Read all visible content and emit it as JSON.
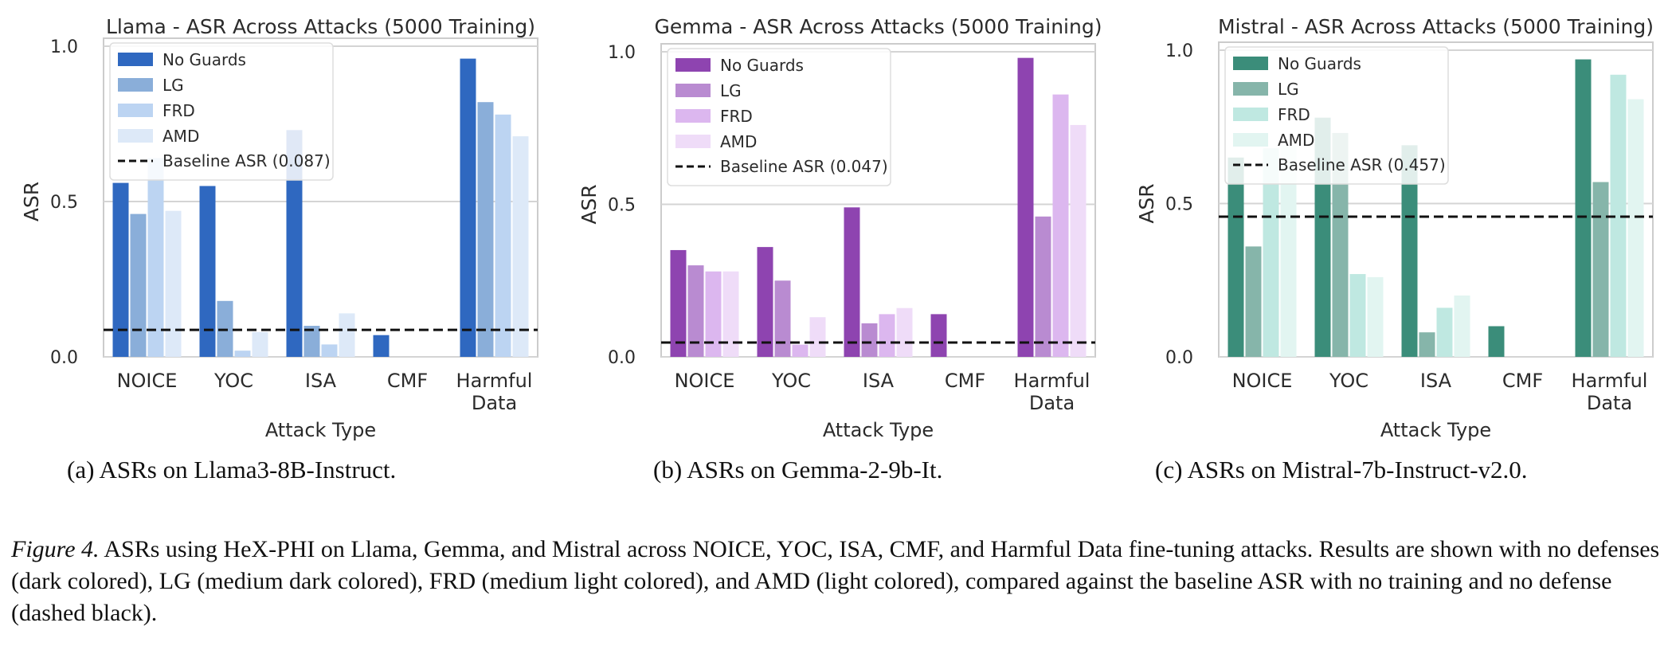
{
  "chart_data": [
    {
      "type": "bar",
      "title": "Llama - ASR Across Attacks (5000 Training)",
      "xlabel": "Attack Type",
      "ylabel": "ASR",
      "categories": [
        "NOICE",
        "YOC",
        "ISA",
        "CMF",
        "Harmful Data"
      ],
      "yticks": [
        "0.0",
        "0.5",
        "1.0"
      ],
      "ylim": [
        0,
        1.0
      ],
      "grid": "horizontal",
      "legend_position": "top-left",
      "colors": [
        "#2f68c0",
        "#8aaed9",
        "#bcd4f2",
        "#dde9f8"
      ],
      "series": [
        {
          "name": "No Guards",
          "values": [
            0.56,
            0.55,
            0.73,
            0.07,
            0.96
          ]
        },
        {
          "name": "LG",
          "values": [
            0.46,
            0.18,
            0.1,
            0.0,
            0.82
          ]
        },
        {
          "name": "FRD",
          "values": [
            0.64,
            0.02,
            0.04,
            0.0,
            0.78
          ]
        },
        {
          "name": "AMD",
          "values": [
            0.47,
            0.08,
            0.14,
            0.0,
            0.71
          ]
        }
      ],
      "baseline": {
        "label": "Baseline ASR (0.087)",
        "value": 0.087
      }
    },
    {
      "type": "bar",
      "title": "Gemma - ASR Across Attacks (5000 Training)",
      "xlabel": "Attack Type",
      "ylabel": "ASR",
      "categories": [
        "NOICE",
        "YOC",
        "ISA",
        "CMF",
        "Harmful Data"
      ],
      "yticks": [
        "0.0",
        "0.5",
        "1.0"
      ],
      "ylim": [
        0,
        1.0
      ],
      "grid": "horizontal",
      "legend_position": "top-left",
      "colors": [
        "#8e44b0",
        "#b98bd1",
        "#dcb7ef",
        "#efdcf8"
      ],
      "series": [
        {
          "name": "No Guards",
          "values": [
            0.35,
            0.36,
            0.49,
            0.14,
            0.98
          ]
        },
        {
          "name": "LG",
          "values": [
            0.3,
            0.25,
            0.11,
            0.0,
            0.46
          ]
        },
        {
          "name": "FRD",
          "values": [
            0.28,
            0.04,
            0.14,
            0.0,
            0.86
          ]
        },
        {
          "name": "AMD",
          "values": [
            0.28,
            0.13,
            0.16,
            0.0,
            0.76
          ]
        }
      ],
      "baseline": {
        "label": "Baseline ASR (0.047)",
        "value": 0.047
      }
    },
    {
      "type": "bar",
      "title": "Mistral - ASR Across Attacks (5000 Training)",
      "xlabel": "Attack Type",
      "ylabel": "ASR",
      "categories": [
        "NOICE",
        "YOC",
        "ISA",
        "CMF",
        "Harmful Data"
      ],
      "yticks": [
        "0.0",
        "0.5",
        "1.0"
      ],
      "ylim": [
        0,
        1.0
      ],
      "grid": "horizontal",
      "legend_position": "top-left",
      "colors": [
        "#3b8d7a",
        "#86b5aa",
        "#bfe8e1",
        "#e2f5f1"
      ],
      "series": [
        {
          "name": "No Guards",
          "values": [
            0.65,
            0.78,
            0.69,
            0.1,
            0.97
          ]
        },
        {
          "name": "LG",
          "values": [
            0.36,
            0.73,
            0.08,
            0.0,
            0.57
          ]
        },
        {
          "name": "FRD",
          "values": [
            0.68,
            0.27,
            0.16,
            0.0,
            0.92
          ]
        },
        {
          "name": "AMD",
          "values": [
            0.69,
            0.26,
            0.2,
            0.0,
            0.84
          ]
        }
      ],
      "baseline": {
        "label": "Baseline ASR (0.457)",
        "value": 0.457
      }
    }
  ],
  "subcaptions": [
    "(a)  ASRs on Llama3-8B-Instruct.",
    "(b)  ASRs on Gemma-2-9b-It.",
    "(c)  ASRs on Mistral-7b-Instruct-v2.0."
  ],
  "figure_caption": {
    "label": "Figure 4.",
    "text": " ASRs using HeX-PHI on Llama, Gemma, and Mistral across NOICE, YOC, ISA, CMF, and Harmful Data fine-tuning attacks. Results are shown with no defenses (dark colored), LG (medium dark colored), FRD (medium light colored), and AMD (light colored), compared against the baseline ASR with no training and no defense (dashed black)."
  }
}
